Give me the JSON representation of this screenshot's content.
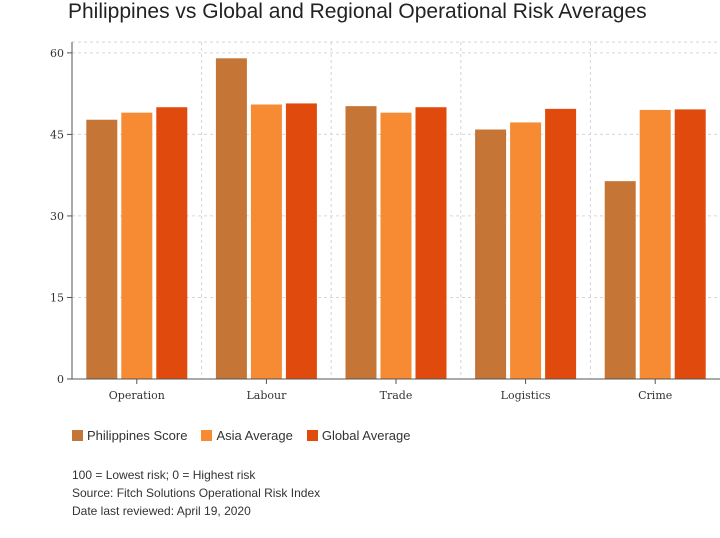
{
  "chart_data": {
    "type": "bar",
    "title": "Philippines vs Global and Regional Operational Risk Averages",
    "categories": [
      "Operation",
      "Labour",
      "Trade",
      "Logistics",
      "Crime"
    ],
    "series": [
      {
        "name": "Philippines Score",
        "color": "#c57636",
        "values": [
          47.7,
          59.0,
          50.2,
          45.9,
          36.4
        ]
      },
      {
        "name": "Asia Average",
        "color": "#f68b33",
        "values": [
          49.0,
          50.5,
          49.0,
          47.2,
          49.5
        ]
      },
      {
        "name": "Global Average",
        "color": "#e04a0c",
        "values": [
          50.0,
          50.7,
          50.0,
          49.7,
          49.6
        ]
      }
    ],
    "yticks": [
      0,
      15,
      30,
      45,
      60
    ],
    "ylim": [
      0,
      62
    ],
    "grid": true,
    "legend_position": "bottom-left"
  },
  "notes": [
    "100 = Lowest risk; 0 = Highest risk",
    "Source: Fitch Solutions Operational Risk Index",
    "Date last reviewed: April 19, 2020"
  ]
}
